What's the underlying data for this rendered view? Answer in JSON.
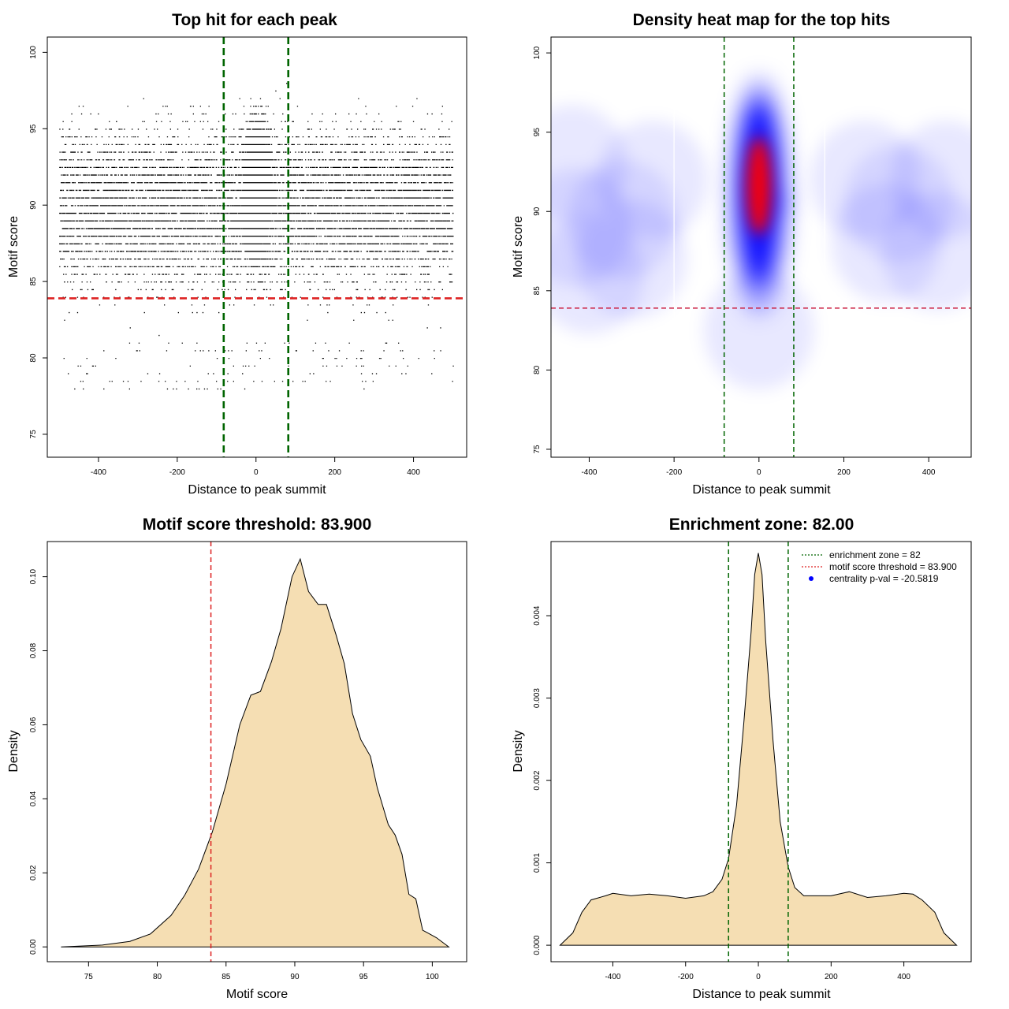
{
  "chart_data": [
    {
      "type": "scatter",
      "title": "Top hit for each peak",
      "xlabel": "Distance to peak summit",
      "ylabel": "Motif score",
      "xlim": [
        -530,
        535
      ],
      "ylim": [
        73.5,
        101
      ],
      "xticks": [
        -400,
        -200,
        0,
        200,
        400
      ],
      "yticks": [
        75,
        80,
        85,
        90,
        95,
        100
      ],
      "xtick_labels": [
        "-400",
        "-200",
        "0",
        "200",
        "400"
      ],
      "ytick_labels": [
        "75",
        "80",
        "85",
        "90",
        "95",
        "100"
      ],
      "hlines": [
        {
          "y": 83.9,
          "color": "#dd2222",
          "style": "dashed"
        }
      ],
      "vlines": [
        {
          "x": -82,
          "color": "#006400",
          "style": "dashed"
        },
        {
          "x": 82,
          "color": "#006400",
          "style": "dashed"
        }
      ],
      "point_color": "#000000",
      "grid": false
    },
    {
      "type": "heatmap",
      "title": "Density heat map for the top hits",
      "xlabel": "Distance to peak summit",
      "ylabel": "Motif score",
      "xlim": [
        -490,
        500
      ],
      "ylim": [
        74.5,
        101
      ],
      "xticks": [
        -400,
        -200,
        0,
        200,
        400
      ],
      "yticks": [
        75,
        80,
        85,
        90,
        95,
        100
      ],
      "xtick_labels": [
        "-400",
        "-200",
        "0",
        "200",
        "400"
      ],
      "ytick_labels": [
        "75",
        "80",
        "85",
        "90",
        "95",
        "100"
      ],
      "colors": [
        "#ffffff",
        "#0000ff",
        "#ff0000"
      ],
      "hlines": [
        {
          "y": 83.9,
          "color": "#cc2244",
          "style": "dashed"
        }
      ],
      "vlines": [
        {
          "x": -82,
          "color": "#006400",
          "style": "dashed"
        },
        {
          "x": 82,
          "color": "#006400",
          "style": "dashed"
        }
      ],
      "grid": false
    },
    {
      "type": "area",
      "title": "Motif score threshold: 83.900",
      "xlabel": "Motif score",
      "ylabel": "Density",
      "xlim": [
        72,
        102.5
      ],
      "ylim": [
        -0.004,
        0.1095
      ],
      "xticks": [
        75,
        80,
        85,
        90,
        95,
        100
      ],
      "yticks": [
        0.0,
        0.02,
        0.04,
        0.06,
        0.08,
        0.1
      ],
      "xtick_labels": [
        "75",
        "80",
        "85",
        "90",
        "95",
        "100"
      ],
      "ytick_labels": [
        "0.00",
        "0.02",
        "0.04",
        "0.06",
        "0.08",
        "0.10"
      ],
      "fill": "#f5deb3",
      "vlines": [
        {
          "x": 83.9,
          "color": "#dd2222",
          "style": "dashed"
        }
      ],
      "x": [
        73,
        76,
        78,
        79.5,
        81,
        82,
        83,
        84,
        85,
        86,
        86.8,
        87.5,
        88.3,
        89,
        89.8,
        90.4,
        91,
        91.7,
        92.3,
        93,
        93.6,
        94.2,
        94.8,
        95.5,
        96,
        96.8,
        97.3,
        97.8,
        98.3,
        98.8,
        99.3,
        99.7,
        100.3,
        101.2
      ],
      "values": [
        0.0,
        0.0005,
        0.0015,
        0.0035,
        0.0085,
        0.014,
        0.021,
        0.031,
        0.044,
        0.06,
        0.068,
        0.069,
        0.077,
        0.086,
        0.1,
        0.1048,
        0.096,
        0.0925,
        0.0925,
        0.0843,
        0.0765,
        0.063,
        0.056,
        0.0515,
        0.043,
        0.033,
        0.0302,
        0.025,
        0.0142,
        0.013,
        0.0045,
        0.0037,
        0.0025,
        0.0
      ]
    },
    {
      "type": "area",
      "title": "Enrichment zone: 82.00",
      "xlabel": "Distance to peak summit",
      "ylabel": "Density",
      "xlim": [
        -570,
        585
      ],
      "ylim": [
        -0.0002,
        0.0049
      ],
      "xticks": [
        -400,
        -200,
        0,
        200,
        400
      ],
      "yticks": [
        0.0,
        0.001,
        0.002,
        0.003,
        0.004
      ],
      "xtick_labels": [
        "-400",
        "-200",
        "0",
        "200",
        "400"
      ],
      "ytick_labels": [
        "0.000",
        "0.001",
        "0.002",
        "0.003",
        "0.004"
      ],
      "fill": "#f5deb3",
      "vlines": [
        {
          "x": -82,
          "color": "#006400",
          "style": "dashed"
        },
        {
          "x": 82,
          "color": "#006400",
          "style": "dashed"
        }
      ],
      "x": [
        -545,
        -510,
        -485,
        -460,
        -420,
        -400,
        -350,
        -300,
        -250,
        -200,
        -150,
        -125,
        -100,
        -82,
        -60,
        -40,
        -20,
        -10,
        0,
        10,
        20,
        40,
        60,
        82,
        100,
        125,
        150,
        200,
        250,
        300,
        350,
        400,
        425,
        450,
        485,
        510,
        545
      ],
      "values": [
        0.0,
        0.00015,
        0.0004,
        0.00055,
        0.0006,
        0.00063,
        0.0006,
        0.00062,
        0.0006,
        0.00057,
        0.0006,
        0.00065,
        0.0008,
        0.00105,
        0.0017,
        0.0027,
        0.0038,
        0.0045,
        0.00476,
        0.0045,
        0.0037,
        0.0025,
        0.0015,
        0.00095,
        0.0007,
        0.0006,
        0.0006,
        0.0006,
        0.00065,
        0.00058,
        0.0006,
        0.00063,
        0.00062,
        0.00055,
        0.0004,
        0.00015,
        0.0
      ]
    }
  ],
  "legend": {
    "placement": "top-right",
    "items": [
      {
        "label": "enrichment zone = 82",
        "color": "#006400",
        "style": "dotted-line"
      },
      {
        "label": "motif score threshold = 83.900",
        "color": "#dd2222",
        "style": "dotted-line"
      },
      {
        "label": "centrality p-val = -20.5819",
        "color": "#0000ff",
        "style": "point"
      }
    ]
  }
}
